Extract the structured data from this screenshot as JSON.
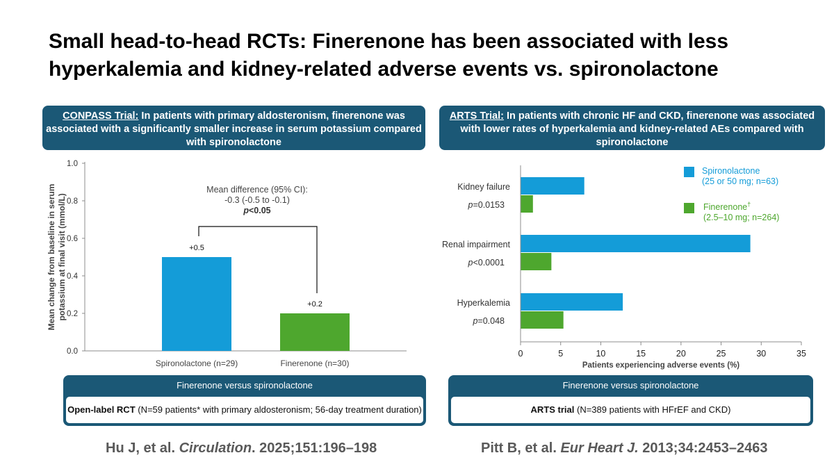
{
  "title": "Small head-to-head RCTs: Finerenone has been associated with less hyperkalemia and kidney-related adverse events vs. spironolactone",
  "colors": {
    "navy": "#1b5876",
    "spironolactone": "#149cd8",
    "finerenone": "#4ea72e"
  },
  "left_panel": {
    "header_lead": "CONPASS Trial:",
    "header_text": " In patients with primary aldosteronism, finerenone was associated with a significantly smaller increase in serum potassium compared with spironolactone",
    "annotation": {
      "line1": "Mean difference (95% CI):",
      "line2": "-0.3 (-0.5 to -0.1)",
      "p_italic": "p",
      "p_rest": "<0.05"
    },
    "box_caption": "Finerenone versus spironolactone",
    "box_bold": "Open-label RCT",
    "box_text": " (N=59 patients* with primary aldosteronism; 56-day treatment duration)",
    "citation_authors": "Hu J, et al. ",
    "citation_journal": "Circulation",
    "citation_rest": ". 2025;151:196–198"
  },
  "right_panel": {
    "header_lead": "ARTS Trial:",
    "header_text": " In patients with chronic HF and CKD, finerenone was associated with lower rates of hyperkalemia and kidney-related AEs compared with spironolactone",
    "box_caption": "Finerenone versus spironolactone",
    "box_bold": "ARTS trial",
    "box_text": " (N=389 patients with HFrEF and CKD)",
    "citation_authors": "Pitt B, et al. ",
    "citation_journal": "Eur Heart J.",
    "citation_rest": " 2013;34:2453–2463"
  },
  "chart_data": [
    {
      "type": "bar",
      "categories": [
        "Spironolactone (n=29)",
        "Finerenone (n=30)"
      ],
      "values": [
        0.5,
        0.2
      ],
      "data_labels": [
        "+0.5",
        "+0.2"
      ],
      "ylabel": "Mean change from baseline in serum potassium at final visit (mmol/L)",
      "ylim": [
        0,
        1.0
      ],
      "yticks": [
        "0.0",
        "0.2",
        "0.4",
        "0.6",
        "0.8",
        "1.0"
      ],
      "grid": false
    },
    {
      "type": "bar",
      "orientation": "horizontal",
      "categories": [
        "Kidney failure",
        "Renal impairment",
        "Hyperkalemia"
      ],
      "p_values": [
        {
          "italic": "p",
          "rest": "=0.0153"
        },
        {
          "italic": "p",
          "rest": "<0.0001"
        },
        {
          "italic": "p",
          "rest": "=0.048"
        }
      ],
      "series": [
        {
          "name": "Spironolactone",
          "detail": "(25 or 50 mg; n=63)",
          "values": [
            7.9,
            28.6,
            12.7
          ]
        },
        {
          "name": "Finerenone",
          "marker": "†",
          "detail": "(2.5–10 mg; n=264)",
          "values": [
            1.5,
            3.8,
            5.3
          ]
        }
      ],
      "xlabel": "Patients experiencing adverse events (%)",
      "xlim": [
        0,
        35
      ],
      "xticks": [
        "0",
        "5",
        "10",
        "15",
        "20",
        "25",
        "30",
        "35"
      ],
      "legend": "top-right",
      "grid": false
    }
  ]
}
